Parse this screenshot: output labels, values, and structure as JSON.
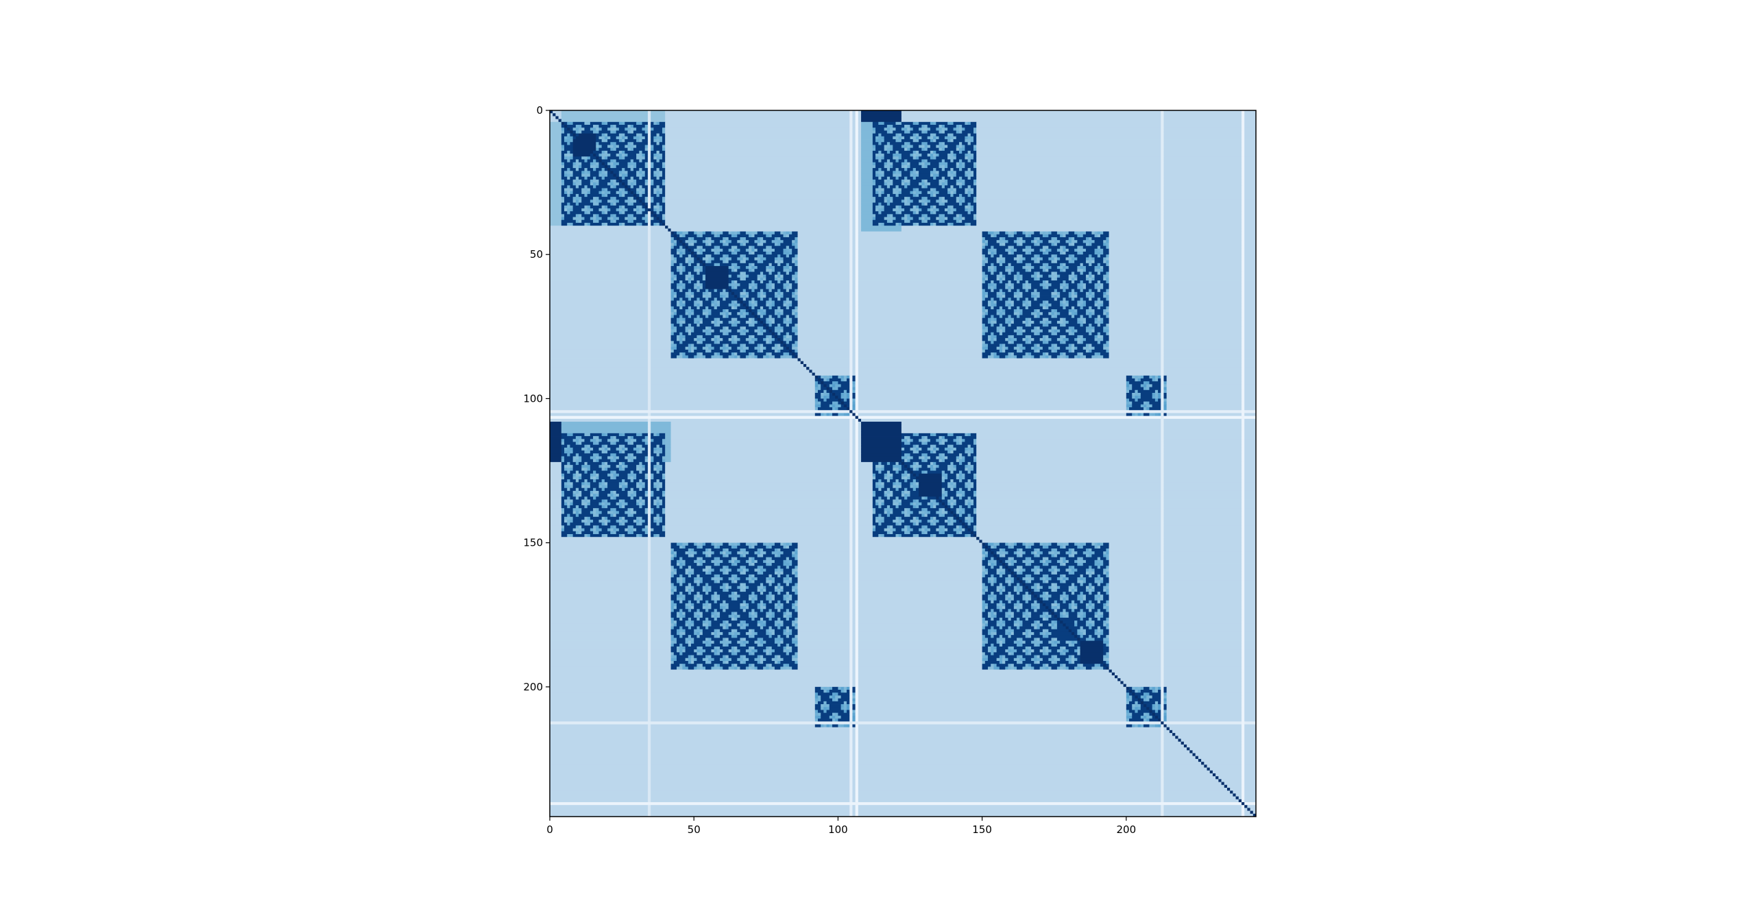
{
  "chart_data": {
    "type": "heatmap",
    "title": "",
    "xlabel": "",
    "ylabel": "",
    "n": 245,
    "xlim": [
      0,
      245
    ],
    "ylim": [
      245,
      0
    ],
    "x_ticks": [
      0,
      50,
      100,
      150,
      200
    ],
    "y_ticks": [
      0,
      50,
      100,
      150,
      200
    ],
    "x_tick_labels": [
      "0",
      "50",
      "100",
      "150",
      "200"
    ],
    "y_tick_labels": [
      "0",
      "50",
      "100",
      "150",
      "200"
    ],
    "colormap": "Blues",
    "colormap_stops": [
      "#f7fbff",
      "#deebf7",
      "#c6dbef",
      "#9ecae1",
      "#6baed6",
      "#4292c6",
      "#2171b5",
      "#08519c",
      "#08306b"
    ],
    "grid": false,
    "legend": "none",
    "background_value": 0.28,
    "period": 108,
    "blocks": [
      {
        "x": [
          4,
          40
        ],
        "y": [
          0,
          4
        ],
        "v": 0.4
      },
      {
        "x": [
          0,
          4
        ],
        "y": [
          4,
          40
        ],
        "v": 0.4
      },
      {
        "x": [
          8,
          36
        ],
        "y": [
          8,
          38
        ],
        "v": 0.45
      },
      {
        "x": [
          10,
          16
        ],
        "y": [
          8,
          14
        ],
        "v": 1.0
      },
      {
        "x": [
          8,
          14
        ],
        "y": [
          10,
          16
        ],
        "v": 1.0
      },
      {
        "x": [
          44,
          84
        ],
        "y": [
          42,
          84
        ],
        "v": 0.4
      },
      {
        "x": [
          54,
          62
        ],
        "y": [
          54,
          62
        ],
        "v": 1.0
      },
      {
        "x": [
          96,
          106
        ],
        "y": [
          94,
          106
        ],
        "v": 0.5
      },
      {
        "x": [
          108,
          122
        ],
        "y": [
          0,
          4
        ],
        "v": 1.0
      },
      {
        "x": [
          108,
          122
        ],
        "y": [
          4,
          42
        ],
        "v": 0.45
      },
      {
        "x": [
          0,
          4
        ],
        "y": [
          108,
          122
        ],
        "v": 1.0
      },
      {
        "x": [
          4,
          42
        ],
        "y": [
          108,
          122
        ],
        "v": 0.45
      },
      {
        "x": [
          108,
          122
        ],
        "y": [
          108,
          122
        ],
        "v": 1.0
      },
      {
        "x": [
          128,
          136
        ],
        "y": [
          126,
          134
        ],
        "v": 1.0
      },
      {
        "x": [
          176,
          182
        ],
        "y": [
          176,
          184
        ],
        "v": 0.95
      },
      {
        "x": [
          184,
          192
        ],
        "y": [
          184,
          192
        ],
        "v": 1.0
      },
      {
        "x": [
          176,
          186
        ],
        "y": [
          150,
          176
        ],
        "v": 0.4
      }
    ],
    "stripes": [
      {
        "axis": "col",
        "index": 34,
        "range": [
          0,
          245
        ],
        "v": 0.15
      },
      {
        "axis": "col",
        "index": 104,
        "range": [
          0,
          245
        ],
        "v": 0.1
      },
      {
        "axis": "col",
        "index": 106,
        "range": [
          0,
          245
        ],
        "v": 0.05
      },
      {
        "axis": "row",
        "index": 104,
        "range": [
          0,
          245
        ],
        "v": 0.1
      },
      {
        "axis": "row",
        "index": 106,
        "range": [
          0,
          245
        ],
        "v": 0.05
      },
      {
        "axis": "col",
        "index": 212,
        "range": [
          0,
          245
        ],
        "v": 0.12
      },
      {
        "axis": "row",
        "index": 212,
        "range": [
          0,
          245
        ],
        "v": 0.12
      },
      {
        "axis": "col",
        "index": 240,
        "range": [
          0,
          245
        ],
        "v": 0.06
      },
      {
        "axis": "row",
        "index": 240,
        "range": [
          0,
          245
        ],
        "v": 0.06
      }
    ]
  }
}
